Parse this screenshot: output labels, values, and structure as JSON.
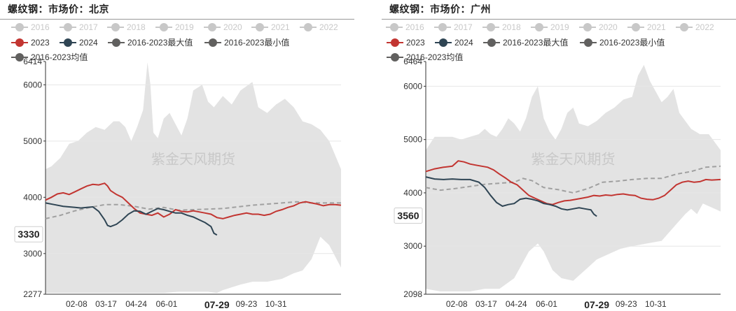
{
  "watermark": "紫金天风期货",
  "palette": {
    "inactive": "#c8c8c8",
    "s2023": "#c23531",
    "s2024": "#2f4554",
    "max": "#61605f",
    "min": "#61605f",
    "avg": "#61605f",
    "band": "#e3e3e3",
    "avg_line": "#a0a0a0"
  },
  "legend_row1": [
    "2016",
    "2017",
    "2018",
    "2019",
    "2020",
    "2021",
    "2022"
  ],
  "legend_row2": [
    "2023",
    "2024",
    "2016-2023最大值",
    "2016-2023最小值"
  ],
  "legend_row3": [
    "2016-2023均值"
  ],
  "chart_data": [
    {
      "type": "line",
      "title": "螺纹钢：市场价：北京",
      "x_ticks": [
        "02-08",
        "03-17",
        "04-24",
        "06-01",
        "07-29",
        "09-23",
        "10-31"
      ],
      "x_tick_pos": [
        0.105,
        0.205,
        0.307,
        0.41,
        0.58,
        0.68,
        0.78
      ],
      "cursor_x_label": "07-29",
      "cursor_y_label": "3330",
      "ylim": [
        2277,
        6414
      ],
      "y_ticks": [
        2277,
        3000,
        4000,
        5000,
        6000,
        6414
      ],
      "x_domain": [
        0,
        1
      ],
      "series": [
        {
          "name": "2016-2023最大值",
          "x": [
            0,
            0.02,
            0.05,
            0.08,
            0.11,
            0.14,
            0.17,
            0.2,
            0.23,
            0.25,
            0.27,
            0.29,
            0.31,
            0.33,
            0.345,
            0.355,
            0.365,
            0.38,
            0.4,
            0.42,
            0.44,
            0.46,
            0.48,
            0.5,
            0.53,
            0.55,
            0.57,
            0.6,
            0.63,
            0.66,
            0.7,
            0.72,
            0.75,
            0.78,
            0.81,
            0.84,
            0.87,
            0.9,
            0.93,
            0.96,
            1.0
          ],
          "y": [
            4500,
            4550,
            4700,
            4950,
            5000,
            5150,
            5250,
            5200,
            5350,
            5350,
            5250,
            5000,
            5250,
            5550,
            6400,
            6000,
            5150,
            5050,
            5400,
            5500,
            5300,
            5100,
            5400,
            5900,
            6000,
            5700,
            5600,
            5800,
            5650,
            5900,
            6050,
            5600,
            5500,
            5650,
            5750,
            5600,
            5350,
            5300,
            5200,
            5000,
            4500
          ]
        },
        {
          "name": "2016-2023最小值",
          "x": [
            0,
            0.05,
            0.1,
            0.15,
            0.2,
            0.25,
            0.3,
            0.35,
            0.4,
            0.45,
            0.5,
            0.55,
            0.58,
            0.6,
            0.63,
            0.66,
            0.7,
            0.75,
            0.8,
            0.84,
            0.87,
            0.9,
            0.93,
            0.96,
            1.0
          ],
          "y": [
            2300,
            2300,
            2300,
            2300,
            2300,
            2300,
            2300,
            2300,
            2300,
            2320,
            2320,
            2320,
            2300,
            2350,
            2400,
            2450,
            2500,
            2500,
            2550,
            2650,
            2700,
            2900,
            3300,
            3150,
            2750
          ]
        },
        {
          "name": "2016-2023均值",
          "x": [
            0,
            0.05,
            0.1,
            0.15,
            0.2,
            0.25,
            0.3,
            0.35,
            0.4,
            0.45,
            0.5,
            0.55,
            0.6,
            0.65,
            0.7,
            0.75,
            0.8,
            0.85,
            0.9,
            0.95,
            1.0
          ],
          "y": [
            3620,
            3680,
            3760,
            3820,
            3870,
            3870,
            3840,
            3790,
            3820,
            3770,
            3780,
            3790,
            3800,
            3830,
            3860,
            3880,
            3900,
            3920,
            3900,
            3900,
            3900
          ]
        },
        {
          "name": "2023",
          "x": [
            0,
            0.02,
            0.04,
            0.06,
            0.08,
            0.1,
            0.12,
            0.14,
            0.16,
            0.18,
            0.2,
            0.21,
            0.22,
            0.24,
            0.26,
            0.28,
            0.3,
            0.32,
            0.34,
            0.36,
            0.38,
            0.4,
            0.42,
            0.44,
            0.46,
            0.48,
            0.5,
            0.52,
            0.54,
            0.56,
            0.58,
            0.6,
            0.62,
            0.64,
            0.66,
            0.68,
            0.7,
            0.72,
            0.74,
            0.76,
            0.78,
            0.8,
            0.82,
            0.84,
            0.86,
            0.88,
            0.9,
            0.92,
            0.94,
            0.96,
            0.98,
            1.0
          ],
          "y": [
            3950,
            4000,
            4060,
            4080,
            4050,
            4100,
            4150,
            4200,
            4230,
            4220,
            4250,
            4200,
            4120,
            4050,
            4000,
            3900,
            3800,
            3720,
            3700,
            3680,
            3720,
            3650,
            3700,
            3780,
            3750,
            3740,
            3760,
            3740,
            3720,
            3700,
            3640,
            3620,
            3650,
            3680,
            3700,
            3720,
            3700,
            3700,
            3680,
            3700,
            3750,
            3780,
            3820,
            3850,
            3900,
            3920,
            3900,
            3880,
            3850,
            3870,
            3870,
            3860
          ]
        },
        {
          "name": "2024",
          "x": [
            0,
            0.03,
            0.06,
            0.08,
            0.1,
            0.12,
            0.14,
            0.16,
            0.18,
            0.2,
            0.21,
            0.22,
            0.24,
            0.26,
            0.28,
            0.3,
            0.32,
            0.34,
            0.36,
            0.38,
            0.4,
            0.42,
            0.44,
            0.46,
            0.48,
            0.5,
            0.52,
            0.54,
            0.56,
            0.57,
            0.58
          ],
          "y": [
            3900,
            3870,
            3840,
            3830,
            3820,
            3810,
            3820,
            3830,
            3750,
            3600,
            3500,
            3480,
            3520,
            3600,
            3700,
            3760,
            3750,
            3700,
            3750,
            3800,
            3780,
            3750,
            3720,
            3720,
            3680,
            3650,
            3600,
            3550,
            3480,
            3360,
            3330
          ]
        }
      ]
    },
    {
      "type": "line",
      "title": "螺纹钢：市场价：广州",
      "x_ticks": [
        "02-08",
        "03-17",
        "04-24",
        "06-01",
        "07-29",
        "09-23",
        "10-31"
      ],
      "x_tick_pos": [
        0.105,
        0.205,
        0.307,
        0.41,
        0.58,
        0.68,
        0.78
      ],
      "cursor_x_label": "07-29",
      "cursor_y_label": "3560",
      "ylim": [
        2098,
        6464
      ],
      "y_ticks": [
        2098,
        3000,
        4000,
        5000,
        6000,
        6464
      ],
      "x_domain": [
        0,
        1
      ],
      "series": [
        {
          "name": "2016-2023最大值",
          "x": [
            0,
            0.03,
            0.06,
            0.09,
            0.12,
            0.15,
            0.18,
            0.2,
            0.22,
            0.24,
            0.26,
            0.28,
            0.3,
            0.32,
            0.34,
            0.36,
            0.38,
            0.4,
            0.42,
            0.44,
            0.46,
            0.48,
            0.5,
            0.52,
            0.55,
            0.58,
            0.61,
            0.64,
            0.67,
            0.7,
            0.72,
            0.74,
            0.76,
            0.78,
            0.8,
            0.82,
            0.84,
            0.86,
            0.88,
            0.9,
            0.93,
            0.96,
            1.0
          ],
          "y": [
            4800,
            5050,
            5050,
            5050,
            5000,
            5050,
            5100,
            5200,
            5100,
            5050,
            5200,
            5400,
            5300,
            5150,
            5400,
            5800,
            6000,
            5400,
            5150,
            5000,
            5200,
            5500,
            5600,
            5300,
            5250,
            5350,
            5500,
            5600,
            5750,
            5800,
            6200,
            6400,
            6100,
            5900,
            5700,
            5800,
            5950,
            5500,
            5350,
            5200,
            5100,
            5100,
            4800
          ]
        },
        {
          "name": "2016-2023最小值",
          "x": [
            0,
            0.05,
            0.1,
            0.15,
            0.2,
            0.25,
            0.3,
            0.33,
            0.35,
            0.38,
            0.4,
            0.43,
            0.46,
            0.5,
            0.55,
            0.58,
            0.62,
            0.66,
            0.7,
            0.75,
            0.8,
            0.84,
            0.88,
            0.9,
            0.92,
            0.94,
            0.96,
            0.98,
            1.0
          ],
          "y": [
            2200,
            2150,
            2150,
            2150,
            2200,
            2200,
            2400,
            2700,
            2900,
            3050,
            2900,
            2550,
            2400,
            2350,
            2600,
            2750,
            2850,
            2950,
            3000,
            3050,
            3100,
            3350,
            3600,
            3700,
            3600,
            3800,
            3750,
            3700,
            3650
          ]
        },
        {
          "name": "2016-2023均值",
          "x": [
            0,
            0.05,
            0.1,
            0.15,
            0.2,
            0.25,
            0.3,
            0.33,
            0.36,
            0.4,
            0.45,
            0.5,
            0.55,
            0.6,
            0.65,
            0.7,
            0.75,
            0.8,
            0.85,
            0.9,
            0.95,
            1.0
          ],
          "y": [
            4100,
            4050,
            4080,
            4120,
            4160,
            4180,
            4200,
            4270,
            4230,
            4100,
            4060,
            4000,
            4080,
            4200,
            4220,
            4250,
            4270,
            4270,
            4350,
            4400,
            4480,
            4500
          ]
        },
        {
          "name": "2023",
          "x": [
            0,
            0.03,
            0.06,
            0.09,
            0.11,
            0.13,
            0.15,
            0.17,
            0.19,
            0.21,
            0.23,
            0.25,
            0.27,
            0.29,
            0.31,
            0.33,
            0.35,
            0.37,
            0.39,
            0.41,
            0.43,
            0.45,
            0.47,
            0.49,
            0.51,
            0.53,
            0.55,
            0.57,
            0.59,
            0.61,
            0.63,
            0.65,
            0.67,
            0.69,
            0.71,
            0.73,
            0.75,
            0.77,
            0.79,
            0.81,
            0.83,
            0.85,
            0.87,
            0.89,
            0.91,
            0.93,
            0.95,
            0.97,
            1.0
          ],
          "y": [
            4400,
            4450,
            4480,
            4500,
            4600,
            4580,
            4540,
            4520,
            4500,
            4480,
            4430,
            4350,
            4280,
            4200,
            4150,
            4050,
            3950,
            3900,
            3850,
            3800,
            3780,
            3820,
            3850,
            3860,
            3880,
            3900,
            3920,
            3950,
            3940,
            3960,
            3950,
            3970,
            3980,
            3960,
            3950,
            3900,
            3880,
            3870,
            3900,
            3950,
            4050,
            4150,
            4200,
            4220,
            4200,
            4210,
            4250,
            4240,
            4250
          ]
        },
        {
          "name": "2024",
          "x": [
            0,
            0.03,
            0.06,
            0.09,
            0.12,
            0.15,
            0.18,
            0.2,
            0.22,
            0.24,
            0.26,
            0.28,
            0.3,
            0.32,
            0.34,
            0.36,
            0.38,
            0.4,
            0.42,
            0.44,
            0.46,
            0.48,
            0.5,
            0.52,
            0.54,
            0.56,
            0.57,
            0.58
          ],
          "y": [
            4300,
            4260,
            4250,
            4260,
            4250,
            4250,
            4200,
            4100,
            3950,
            3820,
            3750,
            3780,
            3800,
            3880,
            3900,
            3880,
            3850,
            3800,
            3780,
            3750,
            3700,
            3680,
            3700,
            3720,
            3700,
            3680,
            3600,
            3560
          ]
        }
      ]
    }
  ]
}
